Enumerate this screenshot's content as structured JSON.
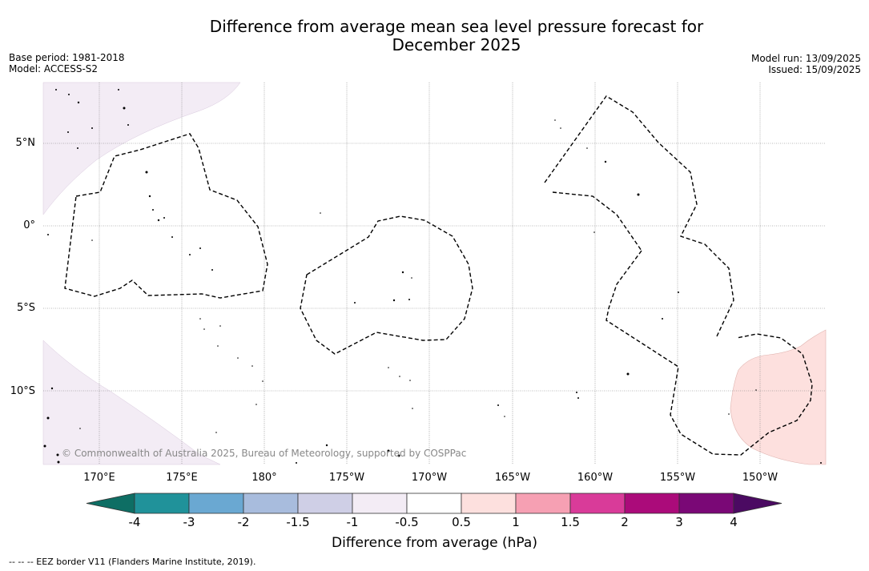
{
  "title_line1": "Difference from average mean sea level pressure forecast for",
  "title_line2": "December 2025",
  "meta_left": {
    "base_period": "Base period: 1981-2018",
    "model": "Model: ACCESS-S2"
  },
  "meta_right": {
    "model_run": "Model run: 13/09/2025",
    "issued": "Issued: 15/09/2025"
  },
  "lat_labels": [
    "5°N",
    "0°",
    "5°S",
    "10°S"
  ],
  "lon_labels": [
    "170°E",
    "175°E",
    "180°",
    "175°W",
    "170°W",
    "165°W",
    "160°W",
    "155°W",
    "150°W"
  ],
  "copyright": "© Commonwealth of Australia 2025, Bureau of Meteorology, supported by COSPPac",
  "colorbar": {
    "title": "Difference from average (hPa)",
    "ticks": [
      "-4",
      "-3",
      "-2",
      "-1.5",
      "-1",
      "-0.5",
      "0.5",
      "1",
      "1.5",
      "2",
      "3",
      "4"
    ],
    "colors": [
      "#0e6e64",
      "#20929a",
      "#6aa8d2",
      "#a8bcdd",
      "#cfcfe6",
      "#f3ecf5",
      "#ffffff",
      "#fde0de",
      "#f6a0b3",
      "#d93b99",
      "#ab0b7a",
      "#7a0876",
      "#4b0a62"
    ]
  },
  "footnote": "-- -- -- EEZ border V11 (Flanders Marine Institute, 2019)."
}
